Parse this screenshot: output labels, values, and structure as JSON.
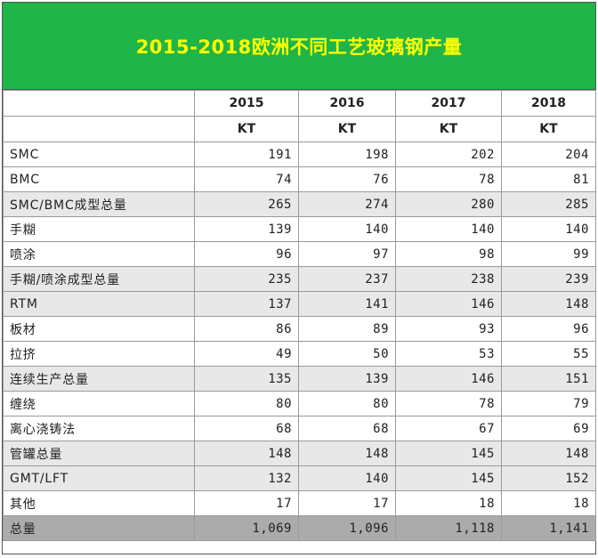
{
  "title": "2015-2018欧洲不同工艺玻璃钢产量",
  "years": [
    "2015",
    "2016",
    "2017",
    "2018"
  ],
  "unit": "KT",
  "rows": [
    {
      "label": "SMC",
      "values": [
        "191",
        "198",
        "202",
        "204"
      ],
      "kind": "normal"
    },
    {
      "label": "BMC",
      "values": [
        "74",
        "76",
        "78",
        "81"
      ],
      "kind": "normal"
    },
    {
      "label": "SMC/BMC成型总量",
      "values": [
        "265",
        "274",
        "280",
        "285"
      ],
      "kind": "subtotal"
    },
    {
      "label": "手糊",
      "values": [
        "139",
        "140",
        "140",
        "140"
      ],
      "kind": "normal"
    },
    {
      "label": "喷涂",
      "values": [
        "96",
        "97",
        "98",
        "99"
      ],
      "kind": "normal"
    },
    {
      "label": "手糊/喷涂成型总量",
      "values": [
        "235",
        "237",
        "238",
        "239"
      ],
      "kind": "subtotal"
    },
    {
      "label": "RTM",
      "values": [
        "137",
        "141",
        "146",
        "148"
      ],
      "kind": "subtotal"
    },
    {
      "label": "板材",
      "values": [
        "86",
        "89",
        "93",
        "96"
      ],
      "kind": "normal"
    },
    {
      "label": "拉挤",
      "values": [
        "49",
        "50",
        "53",
        "55"
      ],
      "kind": "normal"
    },
    {
      "label": "连续生产总量",
      "values": [
        "135",
        "139",
        "146",
        "151"
      ],
      "kind": "subtotal"
    },
    {
      "label": "缠绕",
      "values": [
        "80",
        "80",
        "78",
        "79"
      ],
      "kind": "normal"
    },
    {
      "label": "离心浇铸法",
      "values": [
        "68",
        "68",
        "67",
        "69"
      ],
      "kind": "normal"
    },
    {
      "label": "管罐总量",
      "values": [
        "148",
        "148",
        "145",
        "148"
      ],
      "kind": "subtotal"
    },
    {
      "label": "GMT/LFT",
      "values": [
        "132",
        "140",
        "145",
        "152"
      ],
      "kind": "subtotal"
    },
    {
      "label": "其他",
      "values": [
        "17",
        "17",
        "18",
        "18"
      ],
      "kind": "normal"
    },
    {
      "label": "总量",
      "values": [
        "1,069",
        "1,096",
        "1,118",
        "1,141"
      ],
      "kind": "total"
    }
  ],
  "colors": {
    "title_bg": "#1fb549",
    "title_text": "#ffff00",
    "subtotal_bg": "#e8e8e8",
    "total_bg": "#ababab"
  }
}
